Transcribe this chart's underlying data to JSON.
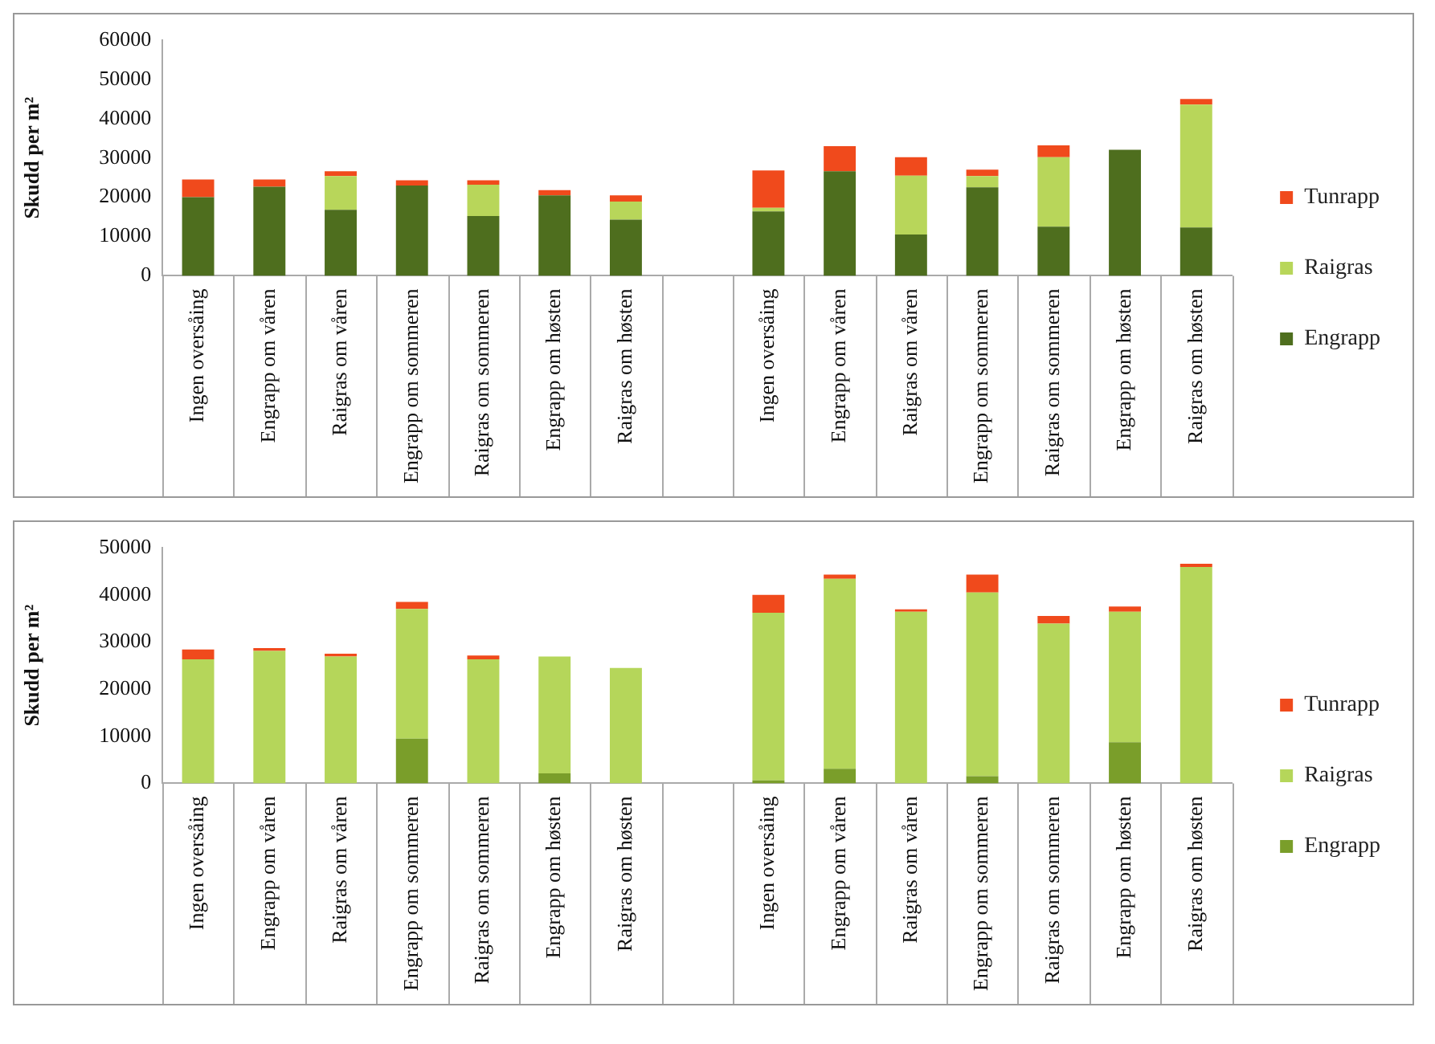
{
  "chart_data": [
    {
      "type": "bar",
      "stacked": true,
      "ylabel": "Skudd per m²",
      "legend": "right",
      "ylim": [
        0,
        60000
      ],
      "yticks": [
        0,
        10000,
        20000,
        30000,
        40000,
        50000,
        60000
      ],
      "categories": [
        "Ingen oversåing",
        "Engrapp om våren",
        "Raigras om våren",
        "Engrapp om sommeren",
        "Raigras om sommeren",
        "Engrapp om høsten",
        "Raigras om høsten",
        null,
        "Ingen oversåing",
        "Engrapp om våren",
        "Raigras om våren",
        "Engrapp om sommeren",
        "Raigras om sommeren",
        "Engrapp om høsten",
        "Raigras om høsten"
      ],
      "series": [
        {
          "name": "Engrapp",
          "color": "#4e6e1e",
          "values": [
            20000,
            22700,
            16800,
            23000,
            15200,
            20500,
            14300,
            null,
            16400,
            26600,
            10500,
            22500,
            12500,
            32100,
            12300
          ]
        },
        {
          "name": "Raigras",
          "color": "#b8d65a",
          "values": [
            0,
            0,
            8600,
            0,
            8000,
            0,
            4600,
            null,
            900,
            0,
            15000,
            2900,
            17700,
            0,
            31300
          ]
        },
        {
          "name": "Tunrapp",
          "color": "#f04a1c",
          "values": [
            4500,
            1800,
            1200,
            1300,
            1100,
            1300,
            1600,
            null,
            9500,
            6400,
            4700,
            1600,
            3000,
            0,
            1400
          ]
        }
      ]
    },
    {
      "type": "bar",
      "stacked": true,
      "ylabel": "Skudd per m²",
      "legend": "right",
      "ylim": [
        0,
        50000
      ],
      "yticks": [
        0,
        10000,
        20000,
        30000,
        40000,
        50000
      ],
      "categories": [
        "Ingen oversåing",
        "Engrapp om våren",
        "Raigras om våren",
        "Engrapp om sommeren",
        "Raigras om sommeren",
        "Engrapp om høsten",
        "Raigras om høsten",
        null,
        "Ingen oversåing",
        "Engrapp om våren",
        "Raigras om våren",
        "Engrapp om sommeren",
        "Raigras om sommeren",
        "Engrapp om høsten",
        "Raigras om høsten"
      ],
      "series": [
        {
          "name": "Engrapp",
          "color": "#7a9e2a",
          "values": [
            0,
            0,
            0,
            9500,
            0,
            2100,
            0,
            null,
            600,
            3100,
            0,
            1500,
            0,
            8700,
            0
          ]
        },
        {
          "name": "Raigras",
          "color": "#b5d65a",
          "values": [
            26300,
            28100,
            26900,
            27500,
            26300,
            24800,
            24500,
            null,
            35600,
            40300,
            36400,
            39000,
            33900,
            27700,
            45900
          ]
        },
        {
          "name": "Tunrapp",
          "color": "#f04a1c",
          "values": [
            2100,
            600,
            600,
            1500,
            800,
            0,
            0,
            null,
            3800,
            900,
            500,
            3800,
            1600,
            1100,
            700
          ]
        }
      ]
    }
  ]
}
